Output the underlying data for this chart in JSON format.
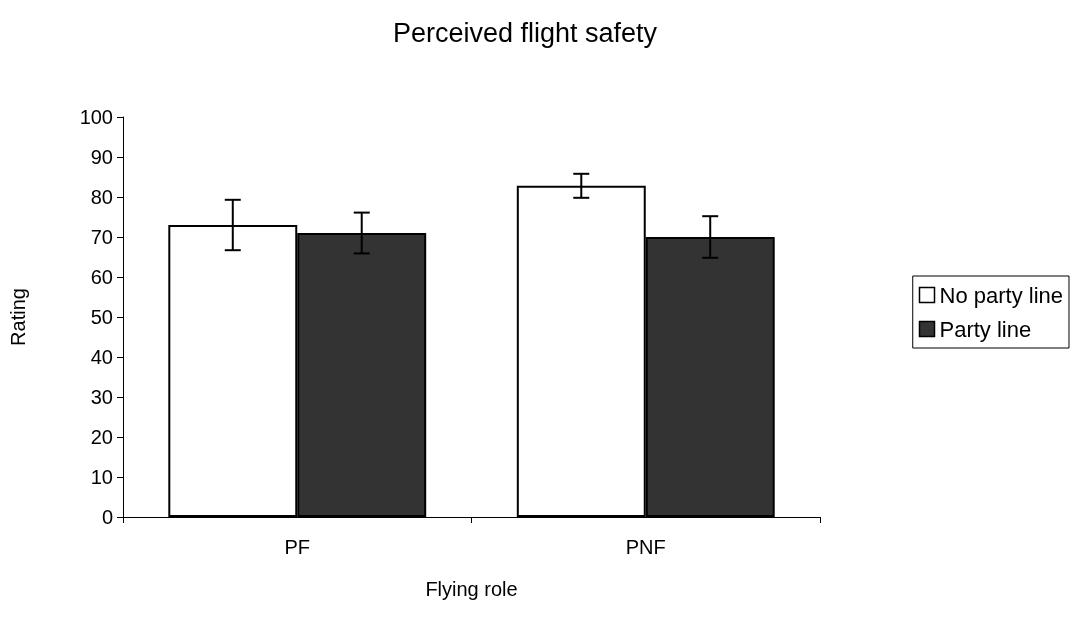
{
  "chart_data": {
    "type": "bar",
    "title": "Perceived flight safety",
    "xlabel": "Flying role",
    "ylabel": "Rating",
    "categories": [
      "PF",
      "PNF"
    ],
    "series": [
      {
        "name": "No party line",
        "color": "#ffffff",
        "values": [
          73,
          82.8
        ],
        "errors": [
          6.3,
          3
        ]
      },
      {
        "name": "Party line",
        "color": "#333333",
        "values": [
          71,
          70
        ],
        "errors": [
          5.1,
          5.2
        ]
      }
    ],
    "ylim": [
      0,
      100
    ],
    "yticks": [
      0,
      10,
      20,
      30,
      40,
      50,
      60,
      70,
      80,
      90,
      100
    ],
    "grid": false,
    "legend": "right"
  }
}
